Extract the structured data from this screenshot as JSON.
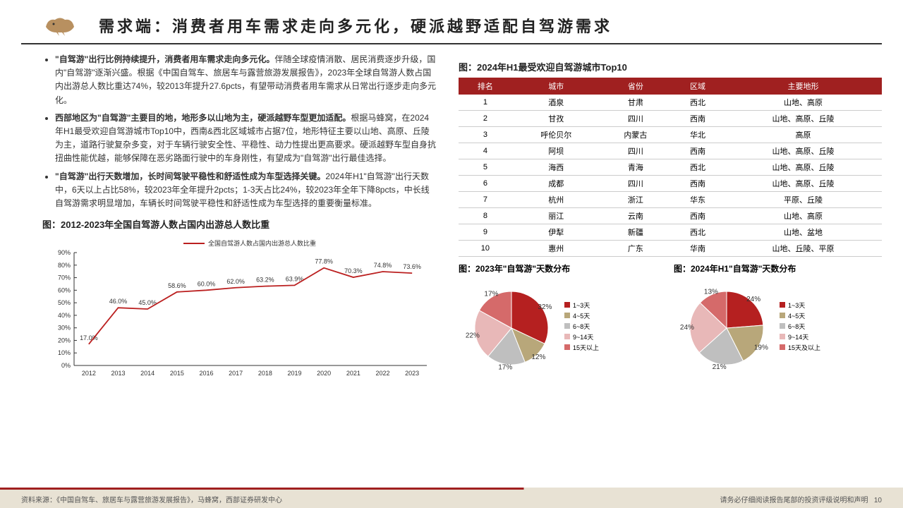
{
  "colors": {
    "accent": "#a02020",
    "accent_light": "#c94a4a",
    "footer_bg": "#e8e2d4",
    "line": "#bb2020",
    "text": "#333333",
    "grid": "#cccccc"
  },
  "header": {
    "title": "需求端：消费者用车需求走向多元化，硬派越野适配自驾游需求"
  },
  "bullets": [
    {
      "bold": "\"自驾游\"出行比例持续提升，消费者用车需求走向多元化。",
      "rest": "伴随全球疫情消散、居民消费逐步升级，国内\"自驾游\"逐渐兴盛。根据《中国自驾车、旅居车与露营旅游发展报告》，2023年全球自驾游人数占国内出游总人数比重达74%，较2013年提升27.6pcts，有望带动消费者用车需求从日常出行逐步走向多元化。"
    },
    {
      "bold": "西部地区为\"自驾游\"主要目的地，地形多以山地为主，硬派越野车型更加适配。",
      "rest": "根据马蜂窝，在2024年H1最受欢迎自驾游城市Top10中，西南&西北区域城市占据7位，地形特征主要以山地、高原、丘陵为主，道路行驶复杂多变，对于车辆行驶安全性、平稳性、动力性提出更高要求。硬派越野车型自身抗扭曲性能优越，能够保障在恶劣路面行驶中的车身刚性，有望成为\"自驾游\"出行最佳选择。"
    },
    {
      "bold": "\"自驾游\"出行天数增加，长时间驾驶平稳性和舒适性成为车型选择关键。",
      "rest": "2024年H1\"自驾游\"出行天数中，6天以上占比58%，较2023年全年提升2pcts；1-3天占比24%，较2023年全年下降8pcts，中长线自驾游需求明显增加，车辆长时间驾驶平稳性和舒适性成为车型选择的重要衡量标准。"
    }
  ],
  "line_chart": {
    "title": "图：2012-2023年全国自驾游人数占国内出游总人数比重",
    "legend": "全国自驾游人数占国内出游总人数比重",
    "type": "line",
    "years": [
      "2012",
      "2013",
      "2014",
      "2015",
      "2016",
      "2017",
      "2018",
      "2019",
      "2020",
      "2021",
      "2022",
      "2023"
    ],
    "values": [
      17.0,
      46.0,
      45.0,
      58.6,
      60.0,
      62.0,
      63.2,
      63.9,
      77.8,
      70.3,
      74.8,
      73.6
    ],
    "labels": [
      "17.0%",
      "46.0%",
      "45.0%",
      "58.6%",
      "60.0%",
      "62.0%",
      "63.2%",
      "63.9%",
      "77.8%",
      "70.3%",
      "74.8%",
      "73.6%"
    ],
    "ylim": [
      0,
      90
    ],
    "ytick_step": 10,
    "line_color": "#bb2020",
    "line_width": 1.8,
    "axis_fontsize": 9,
    "label_fontsize": 9
  },
  "table": {
    "title": "图：2024年H1最受欢迎自驾游城市Top10",
    "columns": [
      "排名",
      "城市",
      "省份",
      "区域",
      "主要地形"
    ],
    "rows": [
      [
        "1",
        "酒泉",
        "甘肃",
        "西北",
        "山地、高原"
      ],
      [
        "2",
        "甘孜",
        "四川",
        "西南",
        "山地、高原、丘陵"
      ],
      [
        "3",
        "呼伦贝尔",
        "内蒙古",
        "华北",
        "高原"
      ],
      [
        "4",
        "阿坝",
        "四川",
        "西南",
        "山地、高原、丘陵"
      ],
      [
        "5",
        "海西",
        "青海",
        "西北",
        "山地、高原、丘陵"
      ],
      [
        "6",
        "成都",
        "四川",
        "西南",
        "山地、高原、丘陵"
      ],
      [
        "7",
        "杭州",
        "浙江",
        "华东",
        "平原、丘陵"
      ],
      [
        "8",
        "丽江",
        "云南",
        "西南",
        "山地、高原"
      ],
      [
        "9",
        "伊犁",
        "新疆",
        "西北",
        "山地、盆地"
      ],
      [
        "10",
        "惠州",
        "广东",
        "华南",
        "山地、丘陵、平原"
      ]
    ]
  },
  "pie_2023": {
    "title": "图：2023年\"自驾游\"天数分布",
    "type": "pie",
    "slices": [
      {
        "label": "1~3天",
        "value": 32,
        "color": "#b52020"
      },
      {
        "label": "4~5天",
        "value": 12,
        "color": "#b8a77a"
      },
      {
        "label": "6~8天",
        "value": 17,
        "color": "#bfbfbf"
      },
      {
        "label": "9~14天",
        "value": 22,
        "color": "#e8b8b8"
      },
      {
        "label": "15天以上",
        "value": 17,
        "color": "#d56a6a"
      }
    ]
  },
  "pie_2024h1": {
    "title": "图：2024年H1\"自驾游\"天数分布",
    "type": "pie",
    "slices": [
      {
        "label": "1~3天",
        "value": 24,
        "color": "#b52020"
      },
      {
        "label": "4~5天",
        "value": 19,
        "color": "#b8a77a"
      },
      {
        "label": "6~8天",
        "value": 21,
        "color": "#bfbfbf"
      },
      {
        "label": "9~14天",
        "value": 24,
        "color": "#e8b8b8"
      },
      {
        "label": "15天及以上",
        "value": 13,
        "color": "#d56a6a"
      }
    ]
  },
  "footer": {
    "source": "资料来源：《中国自驾车、旅居车与露营旅游发展报告》，马蜂窝，西部证券研发中心",
    "disclaimer": "请务必仔细阅读报告尾部的投资评级说明和声明",
    "page": "10"
  }
}
